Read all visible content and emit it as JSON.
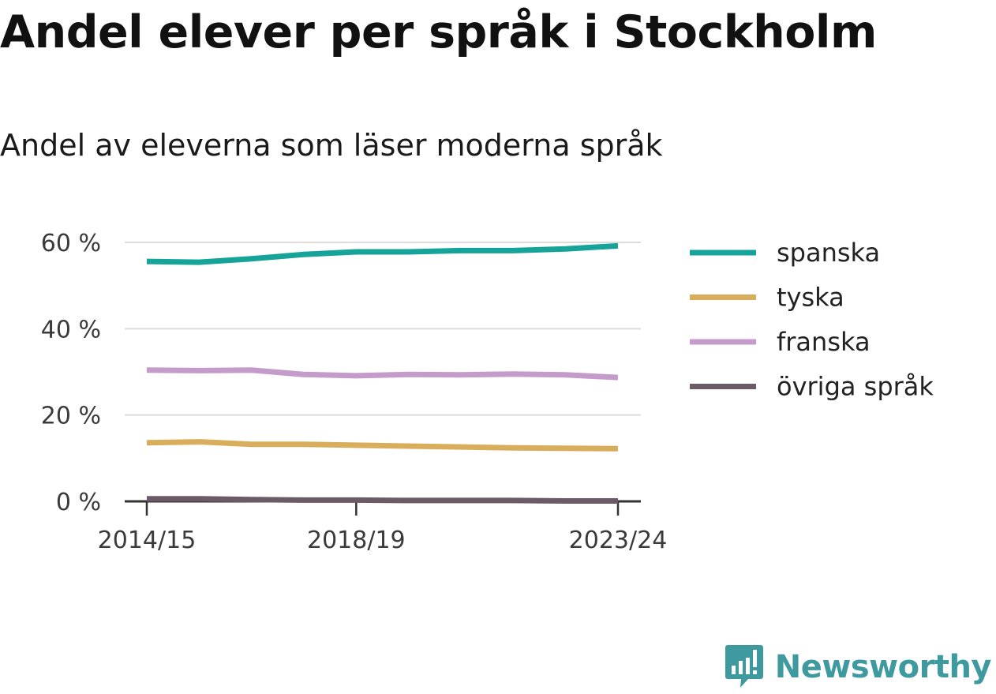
{
  "header": {
    "title": "Andel elever per språk i Stockholm",
    "subtitle": "Andel av eleverna som läser moderna språk"
  },
  "chart_data": {
    "type": "line",
    "x": [
      "2014/15",
      "2015/16",
      "2016/17",
      "2017/18",
      "2018/19",
      "2019/20",
      "2020/21",
      "2021/22",
      "2022/23",
      "2023/24"
    ],
    "x_tick_labels": [
      "2014/15",
      "2018/19",
      "2023/24"
    ],
    "y_tick_labels": [
      "0 %",
      "20 %",
      "40 %",
      "60 %"
    ],
    "y_ticks": [
      0,
      20,
      40,
      60
    ],
    "ylim": [
      0,
      60
    ],
    "grid": true,
    "legend_position": "right",
    "series": [
      {
        "name": "spanska",
        "color": "#15a39a",
        "values": [
          55.6,
          55.4,
          56.2,
          57.2,
          57.8,
          57.8,
          58.1,
          58.1,
          58.5,
          59.2
        ]
      },
      {
        "name": "tyska",
        "color": "#d8ad5c",
        "values": [
          13.6,
          13.8,
          13.2,
          13.2,
          13.0,
          12.8,
          12.6,
          12.4,
          12.3,
          12.2
        ]
      },
      {
        "name": "franska",
        "color": "#c49bcb",
        "values": [
          30.4,
          30.3,
          30.4,
          29.4,
          29.1,
          29.4,
          29.3,
          29.5,
          29.3,
          28.7
        ]
      },
      {
        "name": "övriga språk",
        "color": "#6a5b66",
        "values": [
          0.6,
          0.6,
          0.4,
          0.3,
          0.3,
          0.2,
          0.2,
          0.2,
          0.1,
          0.1
        ]
      }
    ]
  },
  "logo": {
    "name": "Newsworthy",
    "color": "#3f9aa0",
    "icon": "bar-chart-speech-icon"
  }
}
